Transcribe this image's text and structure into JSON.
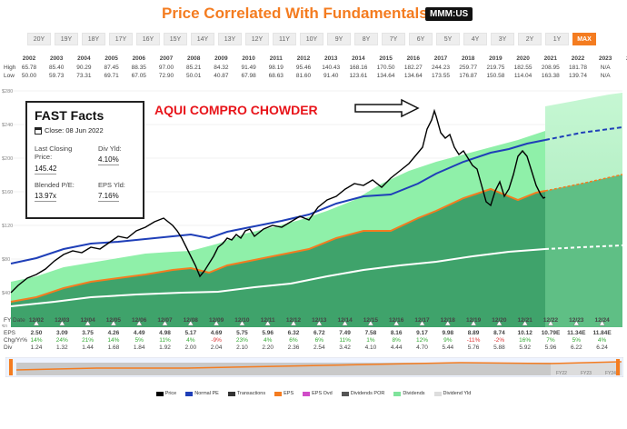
{
  "header": {
    "title": "Price Correlated With Fundamentals",
    "ticker": "MMM:US"
  },
  "ranges": [
    "20Y",
    "19Y",
    "18Y",
    "17Y",
    "16Y",
    "15Y",
    "14Y",
    "13Y",
    "12Y",
    "11Y",
    "10Y",
    "9Y",
    "8Y",
    "7Y",
    "6Y",
    "5Y",
    "4Y",
    "3Y",
    "2Y",
    "1Y",
    "MAX"
  ],
  "active_range": "MAX",
  "highlow": {
    "years": [
      "2002",
      "2003",
      "2004",
      "2005",
      "2006",
      "2007",
      "2008",
      "2009",
      "2010",
      "2011",
      "2012",
      "2013",
      "2014",
      "2015",
      "2016",
      "2017",
      "2018",
      "2019",
      "2020",
      "2021",
      "2022",
      "2023",
      "2024"
    ],
    "high_label": "High",
    "low_label": "Low",
    "high": [
      "65.78",
      "85.40",
      "90.29",
      "87.45",
      "88.35",
      "97.00",
      "85.21",
      "84.32",
      "91.49",
      "98.19",
      "95.46",
      "140.43",
      "168.16",
      "170.50",
      "182.27",
      "244.23",
      "259.77",
      "219.75",
      "182.55",
      "208.95",
      "181.78",
      "N/A",
      "N/A"
    ],
    "low": [
      "50.00",
      "59.73",
      "73.31",
      "69.71",
      "67.05",
      "72.90",
      "50.01",
      "40.87",
      "67.98",
      "68.63",
      "81.60",
      "91.40",
      "123.61",
      "134.64",
      "134.64",
      "173.55",
      "176.87",
      "150.58",
      "114.04",
      "163.38",
      "139.74",
      "N/A",
      "N/A"
    ]
  },
  "fast_facts": {
    "title": "FAST Facts",
    "close_label": "Close: 08 Jun 2022",
    "last_closing_label": "Last Closing Price:",
    "last_closing_value": "145.42",
    "div_yld_label": "Div Yld:",
    "div_yld_value": "4.10%",
    "blended_pe_label": "Blended P/E:",
    "blended_pe_value": "13.97x",
    "eps_yld_label": "EPS Yld:",
    "eps_yld_value": "7.16%"
  },
  "annotation": "AQUI COMPRO CHOWDER",
  "y_axis": [
    "$280",
    "$240",
    "$200",
    "$160",
    "$120",
    "$80",
    "$40",
    "$0"
  ],
  "fy_table": {
    "fy_label": "FY Date",
    "eps_label": "EPS",
    "chg_label": "Chg/Yr%",
    "div_label": "Div",
    "dates": [
      "12/02",
      "12/03",
      "12/04",
      "12/05",
      "12/06",
      "12/07",
      "12/08",
      "12/09",
      "12/10",
      "12/11",
      "12/12",
      "12/13",
      "12/14",
      "12/15",
      "12/16",
      "12/17",
      "12/18",
      "12/19",
      "12/20",
      "12/21",
      "12/22",
      "12/23",
      "12/24"
    ],
    "eps": [
      "2.50",
      "3.09",
      "3.75",
      "4.26",
      "4.49",
      "4.98",
      "5.17",
      "4.69",
      "5.75",
      "5.96",
      "6.32",
      "6.72",
      "7.49",
      "7.58",
      "8.16",
      "9.17",
      "9.98",
      "8.89",
      "8.74",
      "10.12",
      "10.79E",
      "11.34E",
      "11.84E"
    ],
    "chg": [
      "14%",
      "24%",
      "21%",
      "14%",
      "5%",
      "11%",
      "4%",
      "-9%",
      "23%",
      "4%",
      "6%",
      "6%",
      "11%",
      "1%",
      "8%",
      "12%",
      "9%",
      "-11%",
      "-2%",
      "16%",
      "7%",
      "5%",
      "4%"
    ],
    "chg_sign": [
      "+",
      "+",
      "+",
      "+",
      "+",
      "+",
      "+",
      "-",
      "+",
      "+",
      "+",
      "+",
      "+",
      "+",
      "+",
      "+",
      "+",
      "-",
      "-",
      "+",
      "+",
      "+",
      "+"
    ],
    "div": [
      "1.24",
      "1.32",
      "1.44",
      "1.68",
      "1.84",
      "1.92",
      "2.00",
      "2.04",
      "2.10",
      "2.20",
      "2.36",
      "2.54",
      "3.42",
      "4.10",
      "4.44",
      "4.70",
      "5.44",
      "5.76",
      "5.88",
      "5.92",
      "5.96",
      "6.22",
      "6.24"
    ]
  },
  "mini_labels": [
    "FY22",
    "FY23",
    "FY24"
  ],
  "legend": [
    {
      "label": "Price",
      "color": "#000000"
    },
    {
      "label": "Normal PE",
      "color": "#1f3fb8"
    },
    {
      "label": "Transactions",
      "color": "#333333"
    },
    {
      "label": "EPS",
      "color": "#f47c20"
    },
    {
      "label": "EPS Ovd",
      "color": "#d04cc8"
    },
    {
      "label": "Dividends POR",
      "color": "#555555"
    },
    {
      "label": "Dividends",
      "color": "#7fe39b"
    },
    {
      "label": "Dividend Yld",
      "color": "#dddddd"
    }
  ],
  "colors": {
    "accent": "#f47c20",
    "annotation": "#e8141a",
    "normal_pe": "#1f3fb8",
    "price": "#000000",
    "eps_fill": "#3fa36b",
    "div_fill": "#8ff0a9"
  }
}
